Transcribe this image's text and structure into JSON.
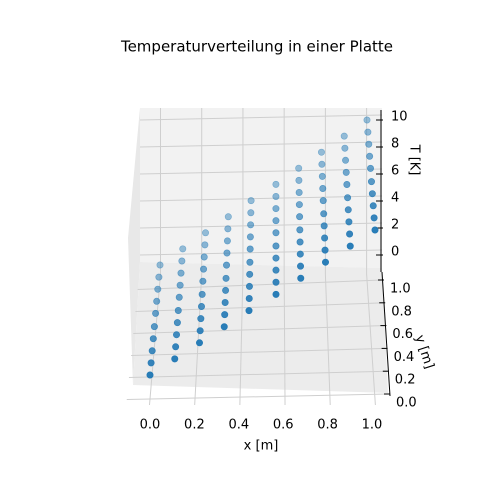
{
  "chart_data": {
    "type": "scatter3d",
    "title": "Temperaturverteilung in einer Platte",
    "x_label": "x [m]",
    "y_label": "y [m]",
    "z_label": "T [K]",
    "color": "#1f77b4",
    "x": [
      0,
      0.11,
      0.22,
      0.33,
      0.44,
      0.56,
      0.67,
      0.78,
      0.89,
      1
    ],
    "y": [
      0,
      0.11,
      0.22,
      0.33,
      0.44,
      0.56,
      0.67,
      0.78,
      0.89,
      1
    ],
    "z": [
      [
        0,
        0,
        0,
        0,
        0,
        0,
        0,
        0,
        0,
        0
      ],
      [
        1.11,
        1.11,
        1.11,
        1.11,
        1.11,
        1.11,
        1.11,
        1.11,
        1.11,
        1.11
      ],
      [
        2.22,
        2.22,
        2.22,
        2.22,
        2.22,
        2.22,
        2.22,
        2.22,
        2.22,
        2.22
      ],
      [
        3.33,
        3.33,
        3.33,
        3.33,
        3.33,
        3.33,
        3.33,
        3.33,
        3.33,
        3.33
      ],
      [
        4.44,
        4.44,
        4.44,
        4.44,
        4.44,
        4.44,
        4.44,
        4.44,
        4.44,
        4.44
      ],
      [
        5.56,
        5.56,
        5.56,
        5.56,
        5.56,
        5.56,
        5.56,
        5.56,
        5.56,
        5.56
      ],
      [
        6.67,
        6.67,
        6.67,
        6.67,
        6.67,
        6.67,
        6.67,
        6.67,
        6.67,
        6.67
      ],
      [
        7.78,
        7.78,
        7.78,
        7.78,
        7.78,
        7.78,
        7.78,
        7.78,
        7.78,
        7.78
      ],
      [
        8.89,
        8.89,
        8.89,
        8.89,
        8.89,
        8.89,
        8.89,
        8.89,
        8.89,
        8.89
      ],
      [
        10,
        10,
        10,
        10,
        10,
        10,
        10,
        10,
        10,
        10
      ]
    ],
    "xlim": [
      -0.05,
      1.05
    ],
    "ylim": [
      -0.05,
      1.05
    ],
    "zlim": [
      -1,
      10.5
    ],
    "xticks": [
      {
        "value": 0,
        "label": "0.0"
      },
      {
        "value": 0.2,
        "label": "0.2"
      },
      {
        "value": 0.4,
        "label": "0.4"
      },
      {
        "value": 0.6,
        "label": "0.6"
      },
      {
        "value": 0.8,
        "label": "0.8"
      },
      {
        "value": 1,
        "label": "1.0"
      }
    ],
    "yticks": [
      {
        "value": 0,
        "label": "0.0"
      },
      {
        "value": 0.2,
        "label": "0.2"
      },
      {
        "value": 0.4,
        "label": "0.4"
      },
      {
        "value": 0.6,
        "label": "0.6"
      },
      {
        "value": 0.8,
        "label": "0.8"
      },
      {
        "value": 1,
        "label": "1.0"
      }
    ],
    "zticks": [
      0,
      2,
      4,
      6,
      8,
      10
    ],
    "grid": true
  }
}
